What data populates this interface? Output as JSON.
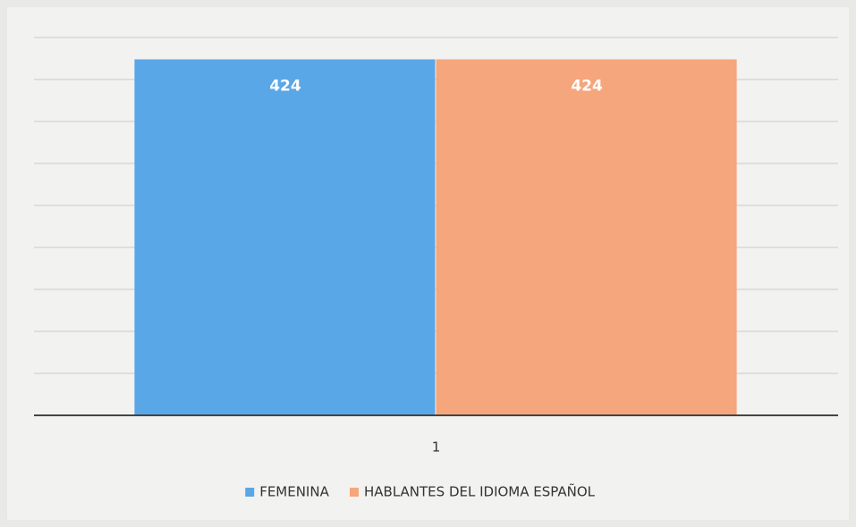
{
  "chart_data": {
    "type": "bar",
    "categories": [
      "1"
    ],
    "series": [
      {
        "name": "FEMENINA",
        "color": "#5aa7e8",
        "values": [
          424
        ]
      },
      {
        "name": "HABLANTES DEL IDIOMA ESPAÑOL",
        "color": "#f5a67c",
        "values": [
          424
        ]
      }
    ],
    "ylim": [
      0,
      450
    ],
    "yticks": [
      0,
      50,
      100,
      150,
      200,
      250,
      300,
      350,
      400,
      450
    ],
    "grid": true,
    "legend": "bottom"
  }
}
